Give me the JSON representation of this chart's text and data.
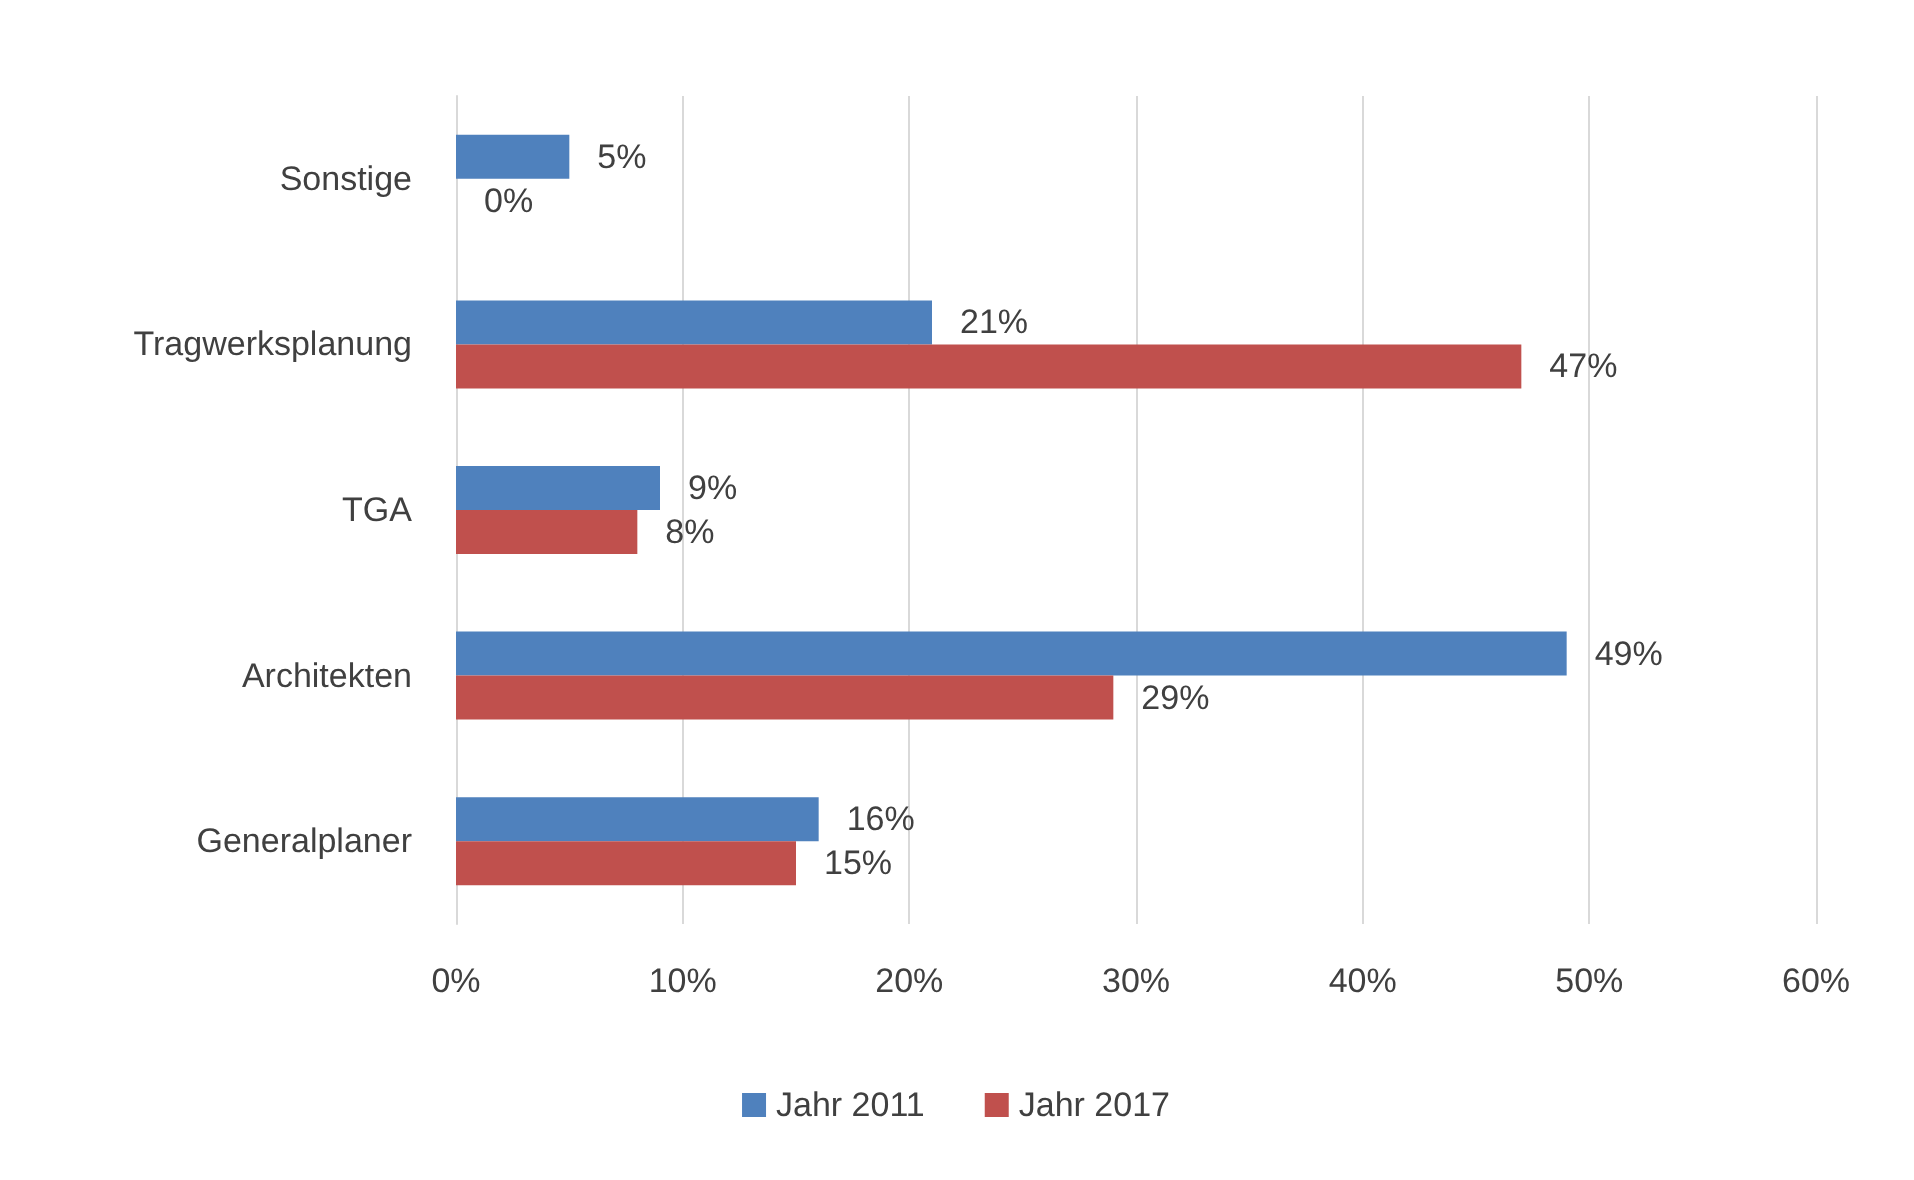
{
  "chart_data": {
    "type": "bar",
    "orientation": "horizontal",
    "categories": [
      "Sonstige",
      "Tragwerksplanung",
      "TGA",
      "Architekten",
      "Generalplaner"
    ],
    "series": [
      {
        "name": "Jahr 2011",
        "color": "#4f81bd",
        "values": [
          5,
          21,
          9,
          49,
          16
        ],
        "value_labels": [
          "5%",
          "21%",
          "9%",
          "49%",
          "16%"
        ]
      },
      {
        "name": "Jahr 2017",
        "color": "#c0504d",
        "values": [
          0,
          47,
          8,
          29,
          15
        ],
        "value_labels": [
          "0%",
          "47%",
          "8%",
          "29%",
          "15%"
        ]
      }
    ],
    "xlim": [
      0,
      60
    ],
    "xticks": [
      {
        "value": 0,
        "label": "0%"
      },
      {
        "value": 10,
        "label": "10%"
      },
      {
        "value": 20,
        "label": "20%"
      },
      {
        "value": 30,
        "label": "30%"
      },
      {
        "value": 40,
        "label": "40%"
      },
      {
        "value": 50,
        "label": "50%"
      },
      {
        "value": 60,
        "label": "60%"
      }
    ],
    "grid": "x",
    "legend": "bottom"
  }
}
